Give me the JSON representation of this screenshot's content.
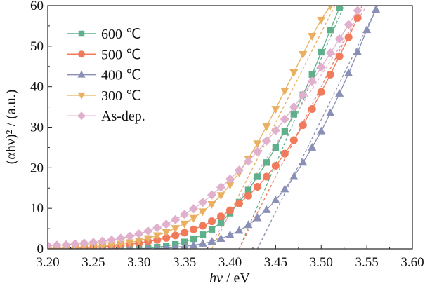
{
  "chart_data": {
    "type": "line",
    "title": "",
    "xlabel_italic": "hν",
    "xlabel_unit": " / eV",
    "ylabel": "(αhν)² / (a.u.)",
    "xlim": [
      3.2,
      3.6
    ],
    "ylim": [
      0,
      60
    ],
    "xticks": [
      "3.20",
      "3.25",
      "3.30",
      "3.35",
      "3.40",
      "3.45",
      "3.50",
      "3.55",
      "3.60"
    ],
    "yticks": [
      "0",
      "10",
      "20",
      "30",
      "40",
      "50",
      "60"
    ],
    "legend_position": "top-left",
    "x": [
      3.2,
      3.21,
      3.22,
      3.23,
      3.24,
      3.25,
      3.26,
      3.27,
      3.28,
      3.29,
      3.3,
      3.31,
      3.32,
      3.33,
      3.34,
      3.35,
      3.36,
      3.37,
      3.38,
      3.39,
      3.4,
      3.41,
      3.42,
      3.43,
      3.44,
      3.45,
      3.46,
      3.47,
      3.48,
      3.49,
      3.5,
      3.51,
      3.52,
      3.53,
      3.54,
      3.55,
      3.56
    ],
    "series": [
      {
        "name": "600 ℃",
        "color": "#5fb08a",
        "marker": "square",
        "values": [
          0,
          0,
          0,
          0,
          0,
          0,
          0,
          0,
          0,
          0,
          0,
          0.2,
          0.4,
          0.7,
          1.1,
          1.7,
          2.5,
          3.5,
          4.8,
          6.5,
          8.8,
          11.5,
          14.5,
          17.8,
          21.3,
          25,
          29,
          33.2,
          38,
          43,
          48.5,
          54,
          59.5,
          null,
          null,
          null,
          null
        ],
        "fit": [
          [
            3.41,
            0
          ],
          [
            3.525,
            60
          ]
        ]
      },
      {
        "name": "500 ℃",
        "color": "#f07a5a",
        "marker": "circle",
        "values": [
          0.1,
          0.1,
          0.2,
          0.2,
          0.3,
          0.4,
          0.5,
          0.6,
          0.8,
          1.1,
          1.4,
          1.8,
          2.2,
          2.7,
          3.3,
          4,
          4.8,
          5.7,
          6.8,
          8,
          9.5,
          11.2,
          13.1,
          15.3,
          17.8,
          20.5,
          23.5,
          26.8,
          30.5,
          34.5,
          38.7,
          43,
          47.5,
          52.2,
          57,
          null,
          null
        ],
        "fit": [
          [
            3.41,
            0
          ],
          [
            3.545,
            60
          ]
        ]
      },
      {
        "name": "400 ℃",
        "color": "#8a8fb5",
        "marker": "triangle-up",
        "values": [
          0,
          0,
          0,
          0,
          0,
          0,
          0,
          0,
          0,
          0,
          0,
          0,
          0,
          0.2,
          0.4,
          0.6,
          0.9,
          1.3,
          1.8,
          2.5,
          3.4,
          4.5,
          5.9,
          7.6,
          9.6,
          12,
          14.7,
          17.8,
          21.3,
          25,
          29,
          33.5,
          38.3,
          43.3,
          48.5,
          54,
          59
        ],
        "fit": [
          [
            3.43,
            0
          ],
          [
            3.562,
            60
          ]
        ]
      },
      {
        "name": "300 ℃",
        "color": "#e8b060",
        "marker": "triangle-down",
        "values": [
          0.1,
          0.1,
          0.2,
          0.3,
          0.4,
          0.5,
          0.7,
          0.9,
          1.2,
          1.6,
          2,
          2.6,
          3.3,
          4.1,
          5.1,
          6.2,
          7.6,
          9.2,
          11,
          13.2,
          15.8,
          18.8,
          22.2,
          26,
          30.2,
          34.5,
          39,
          43.5,
          48,
          52.5,
          56.5,
          60,
          null,
          null,
          null,
          null,
          null
        ],
        "fit": [
          [
            3.38,
            0
          ],
          [
            3.515,
            60
          ]
        ]
      },
      {
        "name": "As-dep.",
        "color": "#e0b0cc",
        "marker": "diamond",
        "values": [
          0.8,
          0.9,
          1,
          1.2,
          1.4,
          1.6,
          1.9,
          2.2,
          2.6,
          3.1,
          3.7,
          4.4,
          5.2,
          6.1,
          7.2,
          8.5,
          9.9,
          11.5,
          13.3,
          15.2,
          17.2,
          19.4,
          21.6,
          24,
          26.6,
          29.2,
          32,
          35,
          38,
          41.3,
          44.8,
          48.3,
          51.8,
          55.3,
          58.8,
          null,
          null
        ],
        "fit": [
          [
            3.375,
            0
          ],
          [
            3.55,
            60
          ]
        ]
      }
    ]
  }
}
